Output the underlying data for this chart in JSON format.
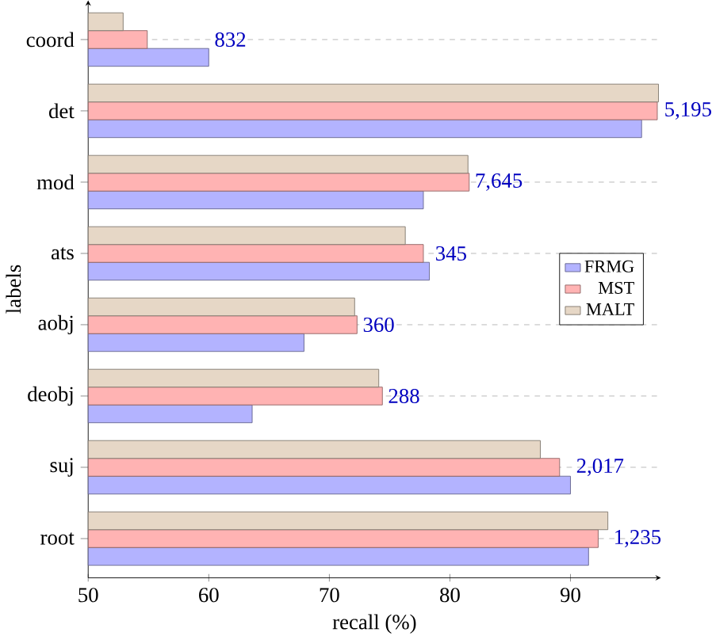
{
  "chart_data": {
    "type": "bar",
    "orientation": "horizontal",
    "xlabel": "recall (%)",
    "ylabel": "labels",
    "categories": [
      "coord",
      "det",
      "mod",
      "ats",
      "aobj",
      "deobj",
      "suj",
      "root"
    ],
    "series": [
      {
        "name": "FRMG",
        "color": "#b3b3ff",
        "values": [
          60.0,
          95.9,
          77.8,
          78.3,
          67.9,
          63.6,
          90.0,
          91.5
        ]
      },
      {
        "name": "MST",
        "color": "#ffb3b3",
        "values": [
          54.9,
          97.2,
          81.6,
          77.8,
          72.3,
          74.4,
          89.1,
          92.3
        ]
      },
      {
        "name": "MALT",
        "color": "#e6d7c6",
        "values": [
          52.9,
          97.3,
          81.5,
          76.3,
          72.1,
          74.1,
          87.5,
          93.1
        ]
      }
    ],
    "xlim": [
      50,
      97.5
    ],
    "xticks": [
      50,
      60,
      70,
      80,
      90
    ],
    "grid": "y",
    "legend": "right",
    "annotations": [
      "832",
      "5,195",
      "7,645",
      "345",
      "360",
      "288",
      "2,017",
      "1,235"
    ]
  }
}
